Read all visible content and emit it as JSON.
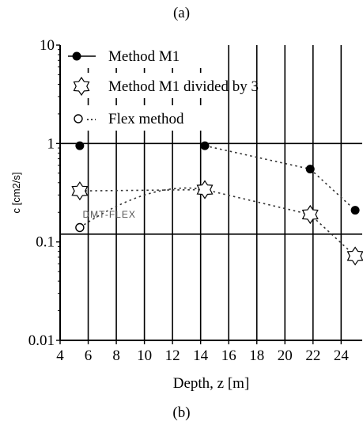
{
  "captions": {
    "top": "(a)",
    "bottom": "(b)"
  },
  "chart_data": {
    "type": "scatter",
    "xlabel": "Depth, z [m]",
    "ylabel": "c [cm2/s]",
    "xlim": [
      4,
      25.5
    ],
    "ylim": [
      0.01,
      10
    ],
    "yscale": "log",
    "xticks": [
      4,
      6,
      8,
      10,
      12,
      14,
      16,
      18,
      20,
      22,
      24
    ],
    "yticks": [
      {
        "value": 0.01,
        "label": "0.01"
      },
      {
        "value": 0.1,
        "label": "0.1"
      },
      {
        "value": 1,
        "label": "1"
      },
      {
        "value": 10,
        "label": "10"
      }
    ],
    "vgrid": [
      6,
      8,
      10,
      12,
      14,
      16,
      18,
      20,
      22,
      24
    ],
    "hgrid": [
      0.12,
      1
    ],
    "series": [
      {
        "name": "Method M1",
        "marker": "filled-circle",
        "connected": "partial",
        "x": [
          5.4,
          14.3,
          21.8,
          25.0
        ],
        "y": [
          0.95,
          0.95,
          0.55,
          0.21
        ]
      },
      {
        "name": "Method M1 divided by 3",
        "marker": "star",
        "connected": true,
        "x": [
          5.4,
          14.3,
          21.8,
          25.0
        ],
        "y": [
          0.33,
          0.34,
          0.19,
          0.072
        ]
      },
      {
        "name": "Flex method",
        "marker": "open-circle",
        "connected": true,
        "x": [
          5.4
        ],
        "y": [
          0.14
        ]
      }
    ],
    "annotations": [
      {
        "text": "DMT-FLEX",
        "x": 7.5,
        "y": 0.19
      }
    ],
    "legend_position": "top-left",
    "colors": {
      "axis": "#000000",
      "marker": "#000000",
      "dotted": "#333333"
    }
  }
}
